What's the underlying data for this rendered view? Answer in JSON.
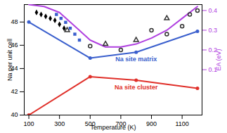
{
  "chart_data": {
    "type": "line",
    "xlabel": "Temperature (K)",
    "ylabel": "Na per unit cell",
    "y2label": "EA (eV)",
    "xlim": [
      70,
      1230
    ],
    "xticks": [
      100,
      300,
      500,
      700,
      900,
      1100
    ],
    "ylim": [
      40,
      49.5
    ],
    "yticks": [
      40,
      42,
      44,
      46,
      48
    ],
    "y2lim": [
      -0.13,
      0.43
    ],
    "y2ticks": [
      0.1,
      0.2,
      0.3,
      0.4
    ],
    "grid": false,
    "series": [
      {
        "name": "Na site matrix",
        "color": "#3a5fcd",
        "marker": "circle",
        "x": [
          100,
          500,
          800,
          1200
        ],
        "values": [
          48.0,
          44.9,
          45.4,
          47.2
        ]
      },
      {
        "name": "Na site cluster",
        "color": "#e0302a",
        "marker": "circle",
        "x": [
          100,
          500,
          800,
          1200
        ],
        "values": [
          40.0,
          43.3,
          43.0,
          42.3
        ]
      },
      {
        "color": "#b040e0",
        "axis": "y2",
        "x": [
          100,
          200,
          300,
          400,
          500,
          600,
          700,
          800,
          900,
          1000,
          1100,
          1200
        ],
        "values": [
          0.43,
          0.42,
          0.39,
          0.32,
          0.25,
          0.215,
          0.215,
          0.23,
          0.26,
          0.3,
          0.36,
          0.42
        ]
      },
      {
        "type": "scatter",
        "axis": "y2",
        "marker": "diamond",
        "color": "#000000",
        "x": [
          150,
          180,
          210,
          240,
          270,
          300,
          330
        ],
        "values": [
          0.39,
          0.38,
          0.37,
          0.36,
          0.35,
          0.33,
          0.31
        ]
      },
      {
        "type": "scatter",
        "axis": "y2",
        "marker": "square",
        "color": "#3a5fcd",
        "x": [
          280,
          310,
          340,
          370,
          400,
          430
        ],
        "values": [
          0.38,
          0.36,
          0.34,
          0.31,
          0.28,
          0.25
        ]
      },
      {
        "type": "scatter",
        "axis": "y2",
        "marker": "open-circle",
        "color": "#333333",
        "x": [
          500,
          700,
          900,
          1000,
          1100,
          1150,
          1200
        ],
        "values": [
          0.22,
          0.2,
          0.3,
          0.28,
          0.32,
          0.38,
          0.4
        ]
      },
      {
        "type": "scatter",
        "axis": "y2",
        "marker": "open-triangle",
        "color": "#333333",
        "x": [
          350,
          600,
          800,
          1000
        ],
        "values": [
          0.3,
          0.23,
          0.25,
          0.36
        ]
      }
    ]
  }
}
